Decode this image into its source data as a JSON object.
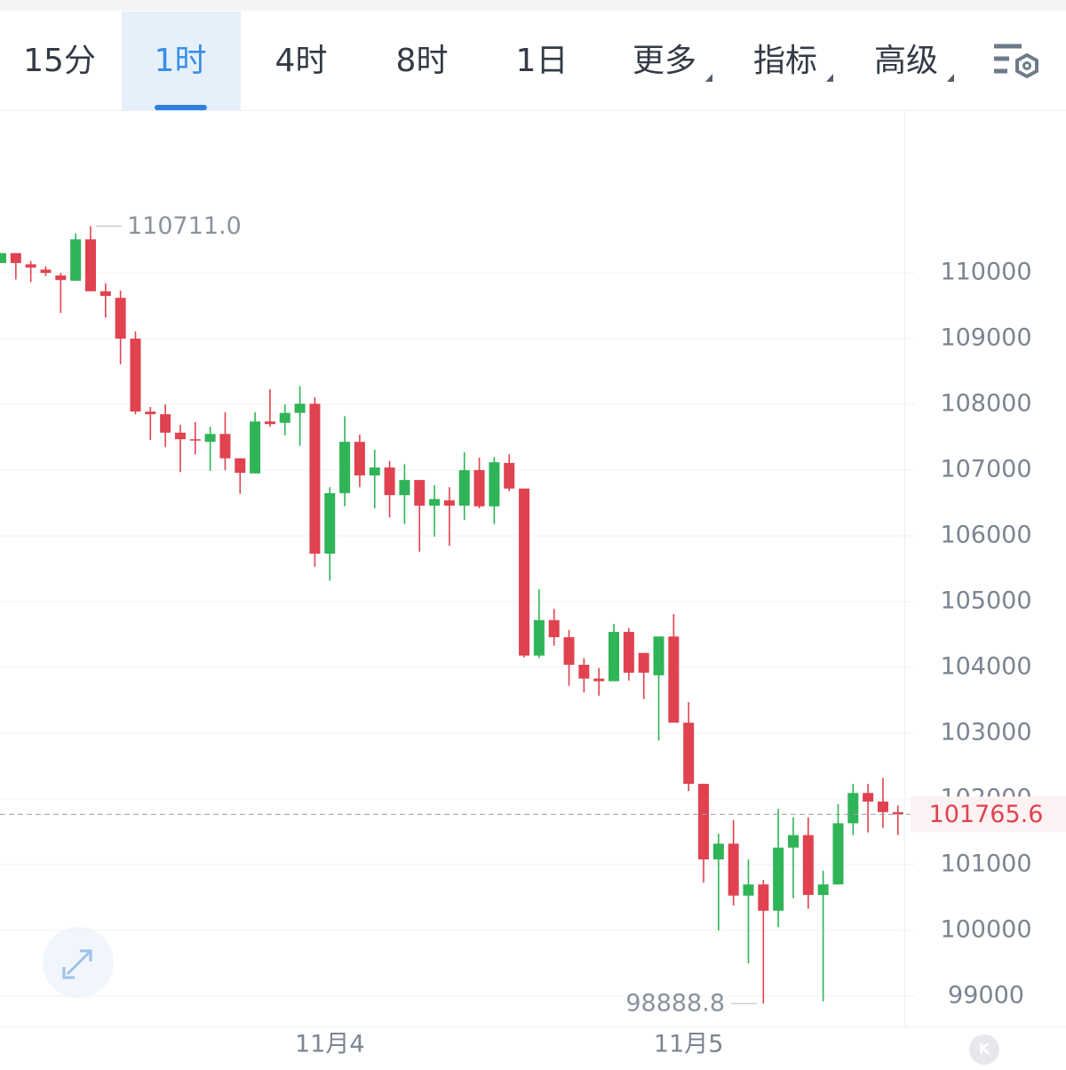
{
  "toolbar": {
    "tabs": [
      "15分",
      "1时",
      "4时",
      "8时",
      "1日",
      "更多",
      "指标",
      "高级"
    ],
    "active": 1
  },
  "chart_data": {
    "type": "candlestick",
    "categories": [
      null,
      null,
      null,
      null,
      null,
      null,
      null,
      null,
      null,
      null,
      null,
      null,
      null,
      null,
      null,
      null,
      null,
      null,
      null,
      null,
      null,
      null,
      "11月4",
      null,
      null,
      null,
      null,
      null,
      null,
      null,
      null,
      null,
      null,
      null,
      null,
      null,
      null,
      null,
      null,
      null,
      null,
      null,
      null,
      null,
      null,
      null,
      "11月5",
      null,
      null,
      null,
      null,
      null,
      null,
      null,
      null,
      null,
      null,
      null,
      null,
      null,
      null
    ],
    "open": [
      110150,
      110300,
      110130,
      110050,
      109960,
      109880,
      110510,
      109720,
      109620,
      109000,
      107890,
      107850,
      107570,
      107470,
      107430,
      107550,
      107180,
      106950,
      107740,
      107720,
      107870,
      108010,
      105730,
      106650,
      107430,
      106920,
      107040,
      106620,
      106850,
      106460,
      106540,
      106460,
      107000,
      106450,
      107110,
      106720,
      104180,
      104720,
      104460,
      104040,
      103830,
      103790,
      104540,
      104220,
      103880,
      104470,
      103160,
      102230,
      101080,
      101320,
      100530,
      100700,
      100300,
      101260,
      101450,
      100540,
      100700,
      101630,
      102090,
      101960,
      101800
    ],
    "high": [
      110300,
      110300,
      110180,
      110100,
      110000,
      110600,
      110711,
      109840,
      109730,
      109110,
      107960,
      108000,
      107690,
      107730,
      107660,
      107880,
      107180,
      107880,
      108230,
      108000,
      108280,
      108110,
      106740,
      107820,
      107540,
      107310,
      107140,
      107090,
      106850,
      106770,
      106740,
      107270,
      107190,
      107200,
      107240,
      106720,
      105190,
      104890,
      104570,
      104140,
      103990,
      104660,
      104600,
      104220,
      104470,
      104810,
      103470,
      102230,
      101470,
      101680,
      101080,
      100770,
      101850,
      101720,
      101720,
      100910,
      101920,
      102230,
      102230,
      102320,
      101900
    ],
    "low": [
      110150,
      109900,
      109860,
      109950,
      109390,
      109880,
      109720,
      109320,
      108610,
      107850,
      107460,
      107350,
      106970,
      107240,
      106990,
      107000,
      106640,
      106950,
      107660,
      107530,
      107370,
      105530,
      105320,
      106450,
      106740,
      106420,
      106280,
      106180,
      105760,
      105990,
      105850,
      106240,
      106420,
      106180,
      106680,
      104150,
      104140,
      104330,
      103720,
      103620,
      103570,
      103790,
      103800,
      103520,
      102890,
      103160,
      102120,
      100730,
      100000,
      100380,
      99500,
      98888.8,
      100050,
      100490,
      100330,
      98920,
      100700,
      101450,
      101490,
      101560,
      101450
    ],
    "close": [
      110300,
      110150,
      110080,
      110000,
      109890,
      110510,
      109720,
      109650,
      109000,
      107890,
      107850,
      107570,
      107470,
      107450,
      107550,
      107180,
      106960,
      107740,
      107700,
      107870,
      108010,
      105730,
      106650,
      107430,
      106920,
      107040,
      106620,
      106850,
      106460,
      106560,
      106460,
      107000,
      106450,
      107120,
      106720,
      104180,
      104720,
      104460,
      104040,
      103830,
      103790,
      104540,
      103920,
      103920,
      104470,
      103160,
      102230,
      101080,
      101320,
      100530,
      100700,
      100300,
      101260,
      101450,
      100540,
      100700,
      101630,
      102090,
      101960,
      101800,
      101765.6
    ],
    "up_color": "#2fb457",
    "down_color": "#e0424f",
    "ylim": [
      98540,
      112460
    ],
    "yticks": [
      99000,
      100000,
      101000,
      102000,
      103000,
      104000,
      105000,
      106000,
      107000,
      108000,
      109000,
      110000
    ],
    "grid": true,
    "max_label": {
      "value": 110711,
      "label": "110711.0"
    },
    "min_label": 98888.8,
    "last_price": 101765.6
  }
}
